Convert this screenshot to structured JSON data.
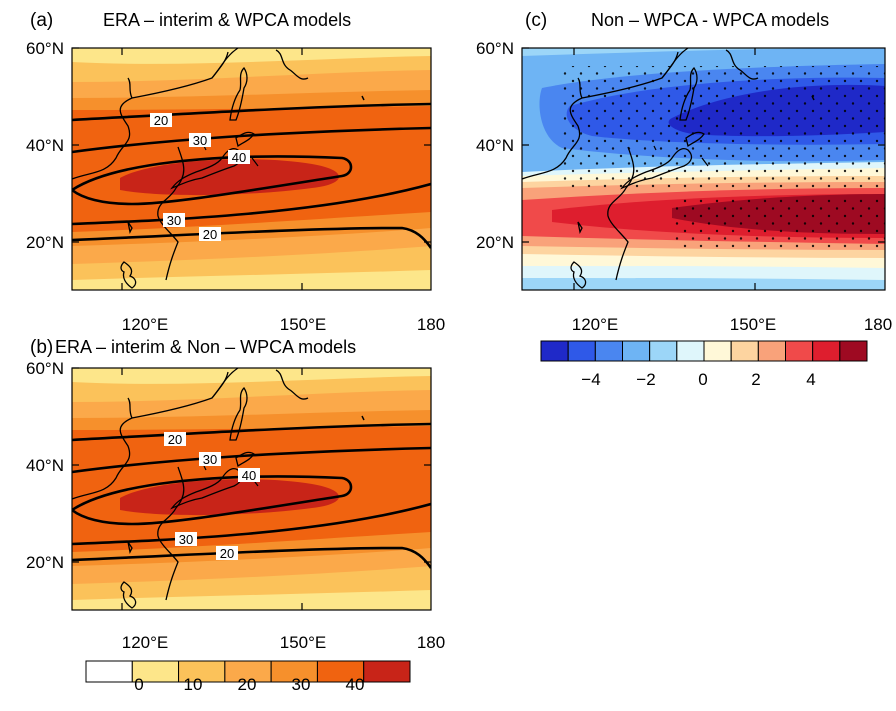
{
  "panels": [
    {
      "id": "a",
      "label": "(a)",
      "title": "ERA – interim & WPCA models",
      "yticks": [
        "60°N",
        "40°N",
        "20°N"
      ],
      "xticks": [
        "120°E",
        "150°E",
        "180"
      ],
      "contour_labels": [
        "20",
        "30",
        "40",
        "30",
        "20"
      ]
    },
    {
      "id": "b",
      "label": "(b)",
      "title": "ERA – interim & Non – WPCA models",
      "yticks": [
        "60°N",
        "40°N",
        "20°N"
      ],
      "xticks": [
        "120°E",
        "150°E",
        "180"
      ],
      "contour_labels": [
        "20",
        "30",
        "40",
        "30",
        "20"
      ]
    },
    {
      "id": "c",
      "label": "(c)",
      "title": "Non – WPCA - WPCA models",
      "yticks": [
        "60°N",
        "40°N",
        "20°N"
      ],
      "xticks": [
        "120°E",
        "150°E",
        "180"
      ]
    }
  ],
  "colorbar_warm": {
    "labels": [
      "0",
      "10",
      "20",
      "30",
      "40"
    ],
    "colors": [
      "#ffffff",
      "#fde68a",
      "#fbc25a",
      "#fba94a",
      "#f6902c",
      "#f06310",
      "#c82418"
    ]
  },
  "colorbar_div": {
    "labels": [
      "−4",
      "−2",
      "0",
      "2",
      "4"
    ],
    "colors": [
      "#1f29c8",
      "#2f59e8",
      "#4a86f0",
      "#6eb4f4",
      "#9cd6f8",
      "#dff6fb",
      "#fff8d8",
      "#fdd4a0",
      "#f9a27a",
      "#f04a4a",
      "#de1e2e",
      "#9e0a22"
    ]
  }
}
